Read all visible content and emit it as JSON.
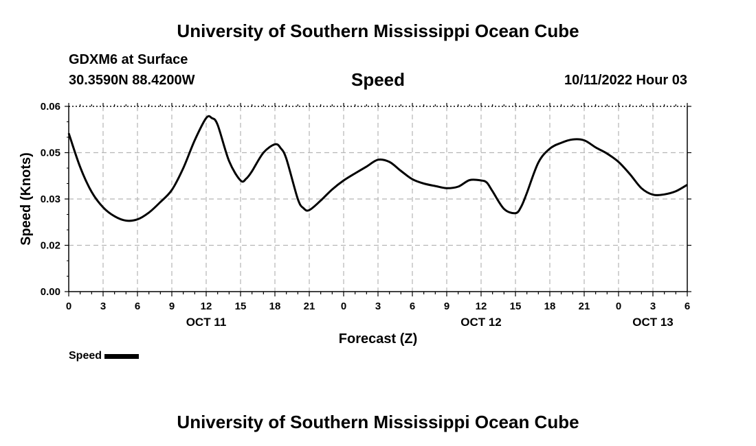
{
  "header": {
    "title": "University of Southern Mississippi Ocean Cube",
    "station": "GDXM6 at Surface",
    "coords": "30.3590N  88.4200W",
    "datetime": "10/11/2022 Hour 03"
  },
  "footer": {
    "title": "University of Southern Mississippi Ocean Cube"
  },
  "chart_data": {
    "type": "line",
    "title": "Speed",
    "xlabel": "Forecast (Z)",
    "ylabel": "Speed (Knots)",
    "xlim": [
      0,
      54
    ],
    "ylim": [
      0,
      0.06
    ],
    "yticks": [
      {
        "value": 0.0,
        "label": "0.00"
      },
      {
        "value": 0.015,
        "label": "0.02"
      },
      {
        "value": 0.03,
        "label": "0.03"
      },
      {
        "value": 0.045,
        "label": "0.05"
      },
      {
        "value": 0.06,
        "label": "0.06"
      }
    ],
    "xticks": [
      {
        "value": 0,
        "label": "0"
      },
      {
        "value": 3,
        "label": "3"
      },
      {
        "value": 6,
        "label": "6"
      },
      {
        "value": 9,
        "label": "9"
      },
      {
        "value": 12,
        "label": "12"
      },
      {
        "value": 15,
        "label": "15"
      },
      {
        "value": 18,
        "label": "18"
      },
      {
        "value": 21,
        "label": "21"
      },
      {
        "value": 24,
        "label": "0"
      },
      {
        "value": 27,
        "label": "3"
      },
      {
        "value": 30,
        "label": "6"
      },
      {
        "value": 33,
        "label": "9"
      },
      {
        "value": 36,
        "label": "12"
      },
      {
        "value": 39,
        "label": "15"
      },
      {
        "value": 42,
        "label": "18"
      },
      {
        "value": 45,
        "label": "21"
      },
      {
        "value": 48,
        "label": "0"
      },
      {
        "value": 51,
        "label": "3"
      },
      {
        "value": 54,
        "label": "6"
      }
    ],
    "date_labels": [
      {
        "value": 12,
        "label": "OCT 11"
      },
      {
        "value": 36,
        "label": "OCT 12"
      },
      {
        "value": 51,
        "label": "OCT 13"
      }
    ],
    "grid": true,
    "legend": "bottom-left",
    "series": [
      {
        "name": "Speed",
        "color": "#000000",
        "x": [
          0,
          1,
          2,
          3,
          4,
          5,
          6,
          7,
          8,
          9,
          10,
          11,
          12,
          12.5,
          13,
          14,
          15,
          15.5,
          16,
          17,
          18,
          18.5,
          19,
          20,
          20.5,
          21,
          22,
          23,
          24,
          25,
          26,
          27,
          28,
          29,
          30,
          31,
          32,
          33,
          34,
          35,
          36,
          36.5,
          37,
          38,
          39,
          39.5,
          40,
          41,
          42,
          43,
          44,
          45,
          46,
          47,
          48,
          49,
          50,
          51,
          52,
          53,
          54
        ],
        "y": [
          0.0513,
          0.0403,
          0.0323,
          0.0273,
          0.0244,
          0.023,
          0.0234,
          0.0256,
          0.029,
          0.0329,
          0.04,
          0.049,
          0.0562,
          0.0562,
          0.054,
          0.0423,
          0.036,
          0.0366,
          0.039,
          0.045,
          0.0477,
          0.0465,
          0.043,
          0.03,
          0.027,
          0.0264,
          0.0295,
          0.0331,
          0.036,
          0.0383,
          0.0405,
          0.0427,
          0.042,
          0.0391,
          0.0364,
          0.035,
          0.0342,
          0.0335,
          0.034,
          0.0361,
          0.036,
          0.0353,
          0.0325,
          0.0268,
          0.0254,
          0.0275,
          0.032,
          0.0418,
          0.0463,
          0.0482,
          0.0493,
          0.049,
          0.0467,
          0.0447,
          0.042,
          0.038,
          0.0335,
          0.0314,
          0.0315,
          0.0325,
          0.0346
        ]
      }
    ]
  }
}
